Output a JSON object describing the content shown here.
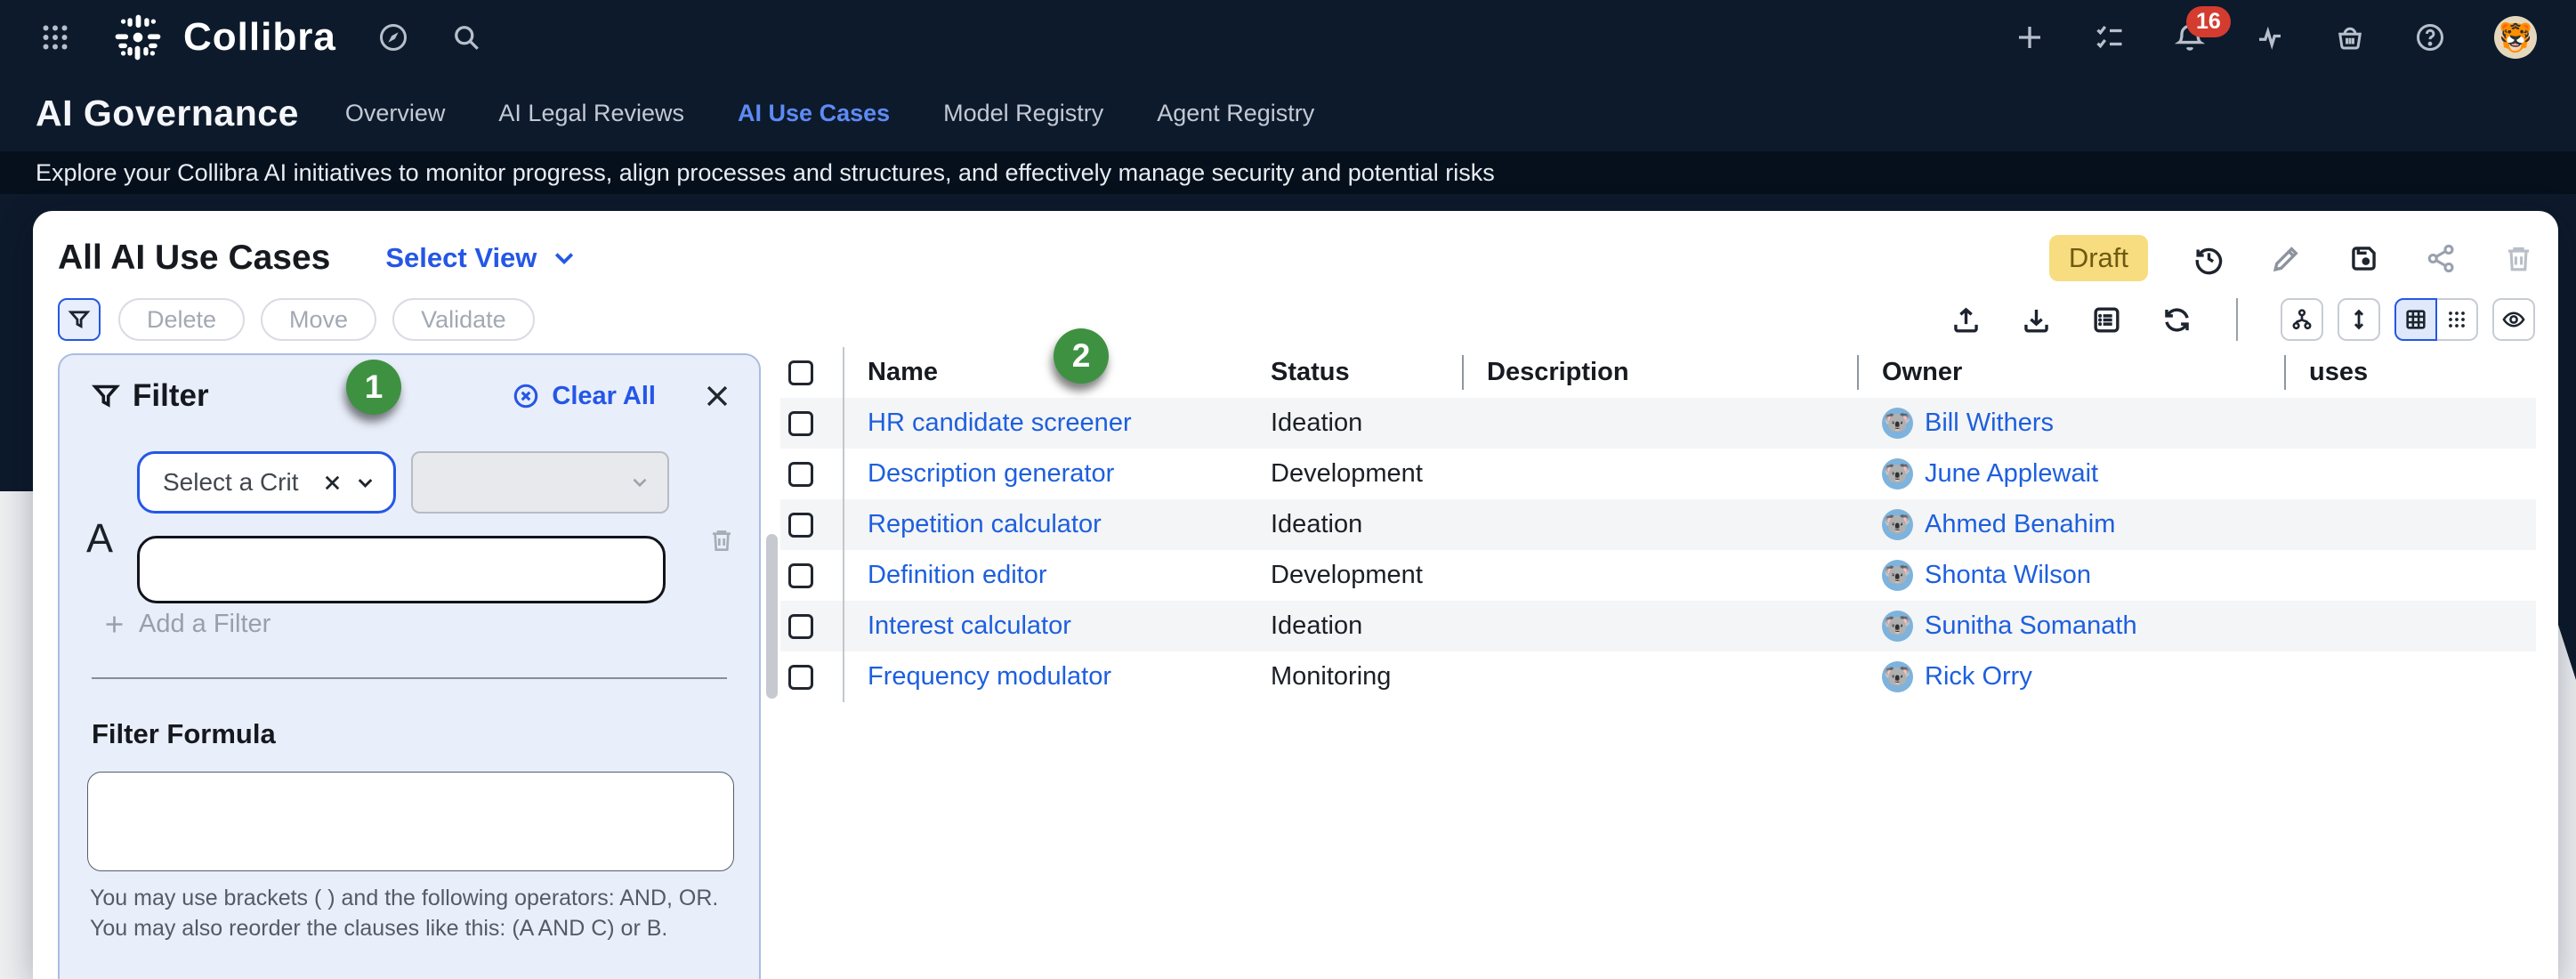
{
  "navbar": {
    "brand": "Collibra",
    "notification_count": "16"
  },
  "header": {
    "title": "AI Governance",
    "tabs": [
      {
        "label": "Overview",
        "active": false
      },
      {
        "label": "AI Legal Reviews",
        "active": false
      },
      {
        "label": "AI Use Cases",
        "active": true
      },
      {
        "label": "Model Registry",
        "active": false
      },
      {
        "label": "Agent Registry",
        "active": false
      }
    ],
    "subtitle": "Explore your Collibra AI initiatives to monitor progress, align processes and structures, and effectively manage security and potential risks"
  },
  "view_header": {
    "title": "All AI Use Cases",
    "select_view_label": "Select View",
    "draft_label": "Draft"
  },
  "toolbar": {
    "buttons": [
      "Delete",
      "Move",
      "Validate"
    ]
  },
  "annotations": [
    "1",
    "2"
  ],
  "filter_panel": {
    "title": "Filter",
    "clear_all_label": "Clear All",
    "clause_label": "A",
    "criteria_placeholder": "Select a Crit",
    "criteria_value_input": "",
    "operator_value": "",
    "add_filter_label": "Add a Filter",
    "formula_label": "Filter Formula",
    "formula_value": "",
    "helper_text": "You may use brackets ( ) and the following operators: AND, OR. You may also reorder the clauses like this: (A AND C) or B."
  },
  "table": {
    "columns": [
      "Name",
      "Status",
      "Description",
      "Owner",
      "uses"
    ],
    "rows": [
      {
        "name": "HR candidate screener",
        "status": "Ideation",
        "description": "",
        "owner": "Bill Withers",
        "uses": ""
      },
      {
        "name": "Description generator",
        "status": "Development",
        "description": "",
        "owner": "June Applewait",
        "uses": ""
      },
      {
        "name": "Repetition calculator",
        "status": "Ideation",
        "description": "",
        "owner": "Ahmed Benahim",
        "uses": ""
      },
      {
        "name": "Definition editor",
        "status": "Development",
        "description": "",
        "owner": "Shonta Wilson",
        "uses": ""
      },
      {
        "name": "Interest calculator",
        "status": "Ideation",
        "description": "",
        "owner": "Sunitha Somanath",
        "uses": ""
      },
      {
        "name": "Frequency modulator",
        "status": "Monitoring",
        "description": "",
        "owner": "Rick Orry",
        "uses": ""
      }
    ]
  },
  "colors": {
    "accent_blue": "#2457e6",
    "link_blue": "#1d5fde",
    "active_tab_blue": "#5d8bf4",
    "draft_bg": "#f7dd7f",
    "draft_text": "#6e5a13",
    "annotation_green": "#3f9142",
    "navy_bg": "#0d1a2b",
    "notification_red": "#d43c2f",
    "panel_bg": "#e9eefb",
    "stripe_gray": "#f4f5f6"
  }
}
